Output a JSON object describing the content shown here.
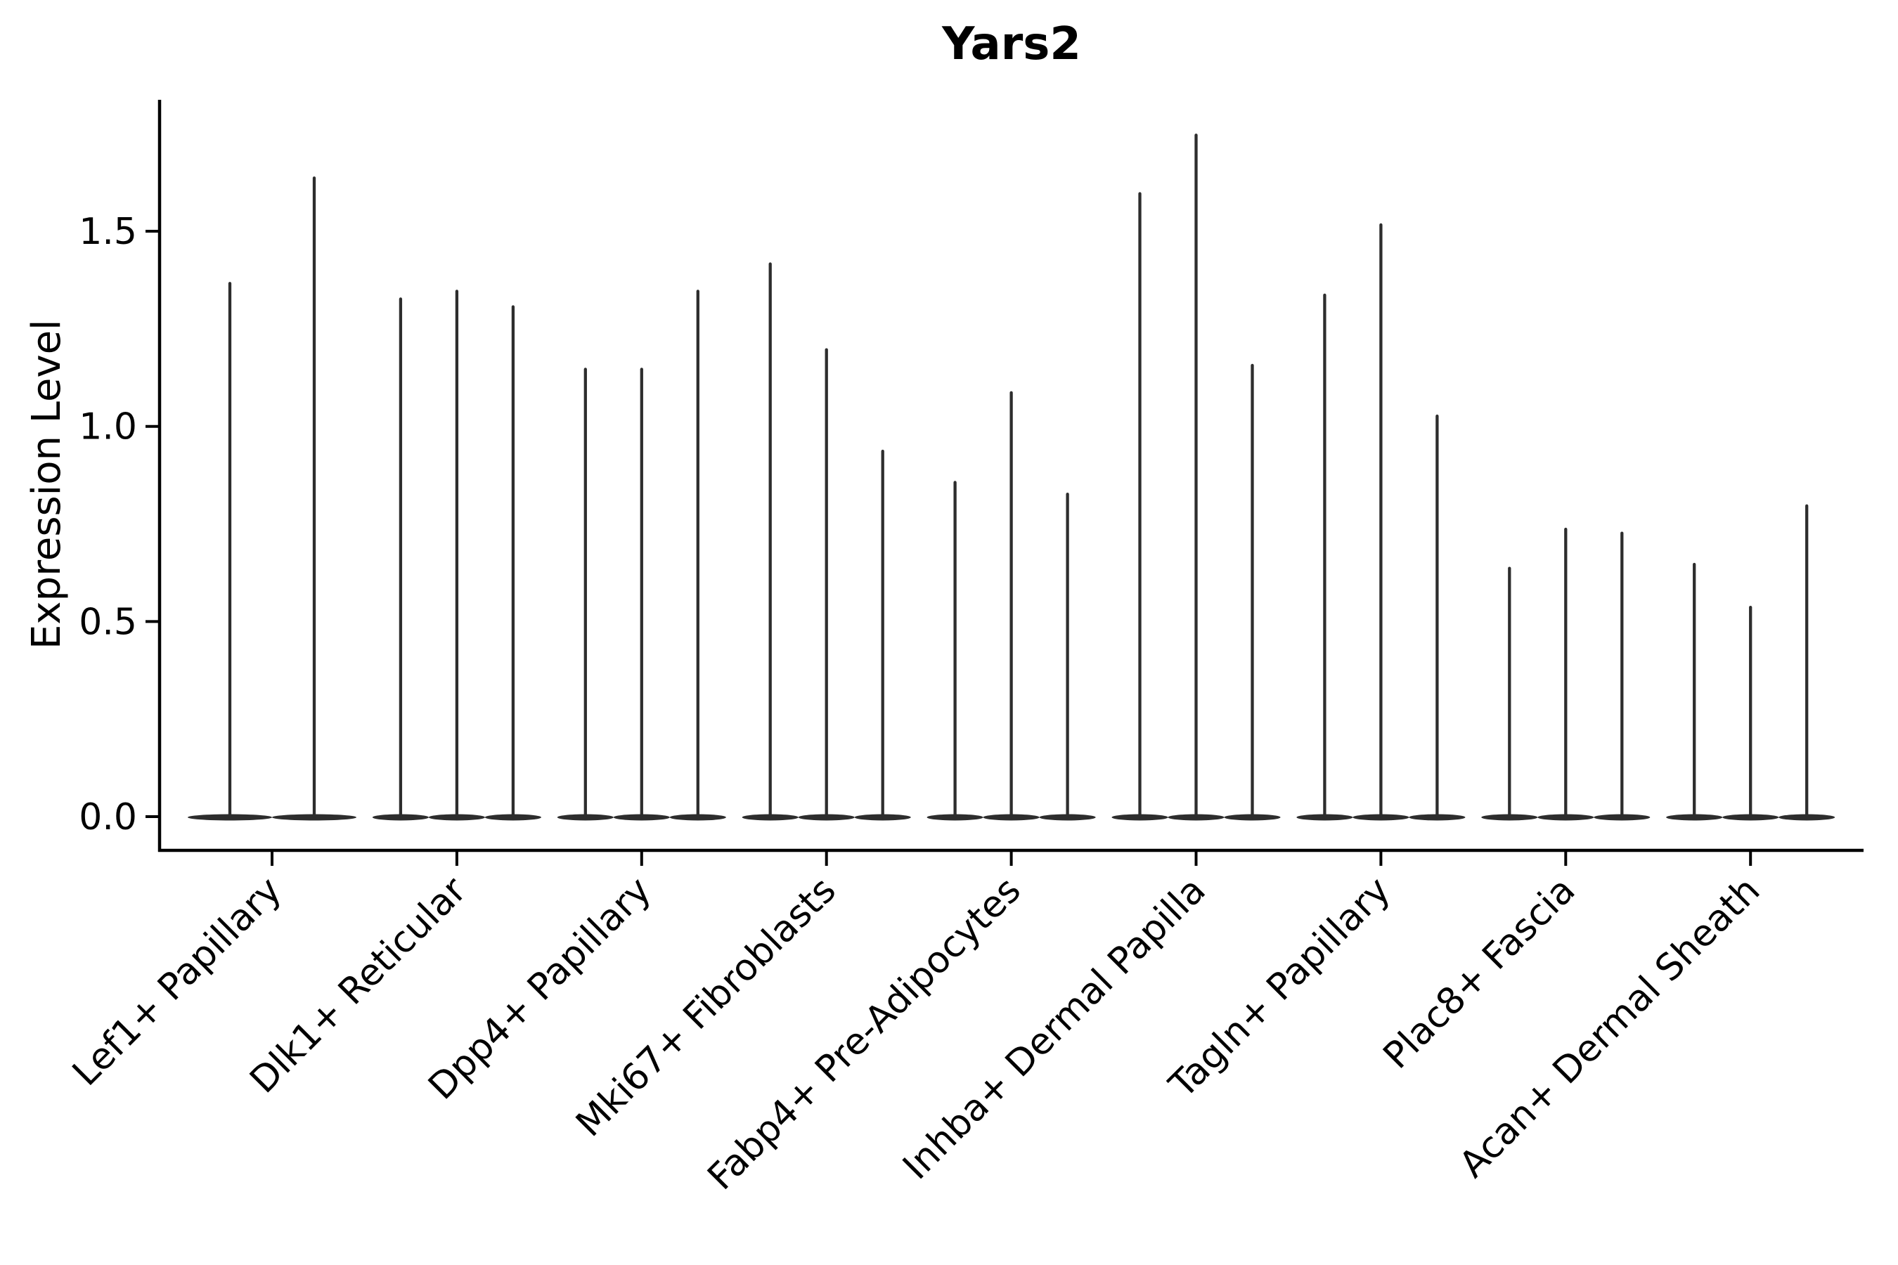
{
  "chart_data": {
    "type": "violin",
    "title": "Yars2",
    "ylabel": "Expression Level",
    "xlabel": "",
    "yticks": [
      "0.0",
      "0.5",
      "1.0",
      "1.5"
    ],
    "ylim": [
      -0.09,
      1.84
    ],
    "grid": false,
    "legend": "none",
    "style_note": "needle-thin black violins: flat kde body at 0 with single thin spike up to max expression",
    "categories": [
      "Lef1+ Papillary",
      "Dlk1+ Reticular",
      "Dpp4+ Papillary",
      "Mki67+ Fibroblasts",
      "Fabp4+ Pre-Adipocytes",
      "Inhba+ Dermal Papilla",
      "Tagln+ Papillary",
      "Plac8+ Fascia",
      "Acan+ Dermal Sheath"
    ],
    "groups": [
      {
        "category": "Lef1+ Papillary",
        "violin_max": [
          1.37,
          1.64
        ]
      },
      {
        "category": "Dlk1+ Reticular",
        "violin_max": [
          1.33,
          1.35,
          1.31
        ]
      },
      {
        "category": "Dpp4+ Papillary",
        "violin_max": [
          1.15,
          1.15,
          1.35
        ]
      },
      {
        "category": "Mki67+ Fibroblasts",
        "violin_max": [
          1.42,
          1.2,
          0.94
        ]
      },
      {
        "category": "Fabp4+ Pre-Adipocytes",
        "violin_max": [
          0.86,
          1.09,
          0.83
        ]
      },
      {
        "category": "Inhba+ Dermal Papilla",
        "violin_max": [
          1.6,
          1.75,
          1.16
        ]
      },
      {
        "category": "Tagln+ Papillary",
        "violin_max": [
          1.34,
          1.52,
          1.03
        ]
      },
      {
        "category": "Plac8+ Fascia",
        "violin_max": [
          0.64,
          0.74,
          0.73
        ]
      },
      {
        "category": "Acan+ Dermal Sheath",
        "violin_max": [
          0.65,
          0.54,
          0.8
        ]
      }
    ],
    "violin_baseline_value": 0.0,
    "colors": {
      "violin": "#2d2d2d",
      "axis": "#000000",
      "text": "#000000",
      "background": "#ffffff"
    }
  }
}
